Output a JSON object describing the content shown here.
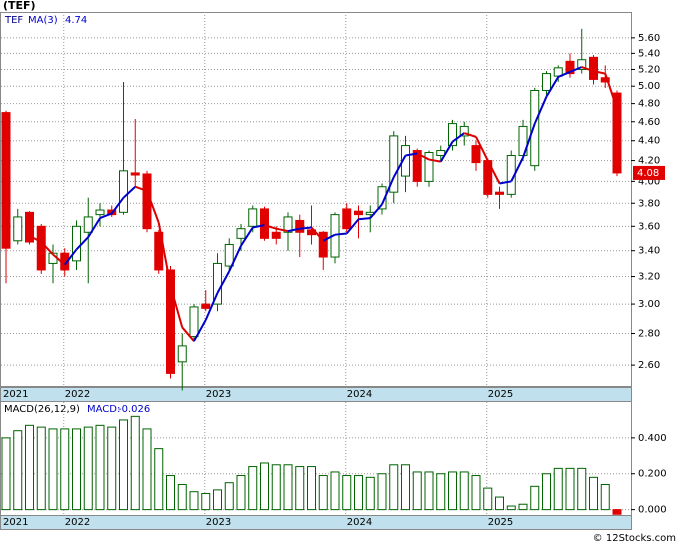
{
  "footer": "© 12Stocks.com",
  "chart_data": [
    {
      "type": "candlestick",
      "title": "(TEF)",
      "symbol": "TEF",
      "categories": [
        "2021",
        null,
        null,
        null,
        null,
        "2022",
        null,
        null,
        null,
        null,
        null,
        null,
        null,
        null,
        null,
        null,
        null,
        "2023",
        null,
        null,
        null,
        null,
        null,
        null,
        null,
        null,
        null,
        null,
        null,
        "2024",
        null,
        null,
        null,
        null,
        null,
        null,
        null,
        null,
        null,
        null,
        null,
        "2025",
        null,
        null,
        null,
        null,
        null,
        null,
        null,
        null,
        null,
        null,
        null
      ],
      "open": [
        4.7,
        3.48,
        3.72,
        3.6,
        3.3,
        3.38,
        3.32,
        3.55,
        3.7,
        3.74,
        3.72,
        4.08,
        4.07,
        3.55,
        3.25,
        2.62,
        2.78,
        3.0,
        3.0,
        3.28,
        3.5,
        3.6,
        3.75,
        3.55,
        3.55,
        3.65,
        3.57,
        3.55,
        3.35,
        3.75,
        3.73,
        3.7,
        3.75,
        3.9,
        4.05,
        4.3,
        4.0,
        4.25,
        4.35,
        4.45,
        4.35,
        4.2,
        3.9,
        3.88,
        4.25,
        4.15,
        4.95,
        5.12,
        5.3,
        5.2,
        5.35,
        5.1,
        4.92
      ],
      "high": [
        4.72,
        3.75,
        3.73,
        3.62,
        3.45,
        3.42,
        3.65,
        3.85,
        3.8,
        3.78,
        5.05,
        4.63,
        4.1,
        3.57,
        3.28,
        2.8,
        3.0,
        3.1,
        3.38,
        3.5,
        3.62,
        3.78,
        3.77,
        3.6,
        3.72,
        3.7,
        3.78,
        3.56,
        3.72,
        3.8,
        3.78,
        3.78,
        3.98,
        4.5,
        4.45,
        4.32,
        4.3,
        4.35,
        4.62,
        4.6,
        4.4,
        4.22,
        3.95,
        4.3,
        4.62,
        4.98,
        5.18,
        5.25,
        5.4,
        5.72,
        5.38,
        5.25,
        4.95
      ],
      "low": [
        3.15,
        3.45,
        3.45,
        3.22,
        3.15,
        3.2,
        3.25,
        3.15,
        3.6,
        3.68,
        3.7,
        3.95,
        3.55,
        3.22,
        2.52,
        2.45,
        2.75,
        2.95,
        2.95,
        3.25,
        3.4,
        3.55,
        3.48,
        3.45,
        3.4,
        3.35,
        3.45,
        3.25,
        3.3,
        3.55,
        3.5,
        3.55,
        3.7,
        3.8,
        3.9,
        3.95,
        3.95,
        4.2,
        4.3,
        4.35,
        4.1,
        3.85,
        3.75,
        3.85,
        4.2,
        4.1,
        4.9,
        5.05,
        5.1,
        5.15,
        5.02,
        4.98,
        4.05
      ],
      "close": [
        3.42,
        3.68,
        3.47,
        3.25,
        3.38,
        3.25,
        3.6,
        3.68,
        3.74,
        3.7,
        4.1,
        4.06,
        3.58,
        3.25,
        2.55,
        2.72,
        2.98,
        2.97,
        3.3,
        3.45,
        3.58,
        3.75,
        3.5,
        3.5,
        3.68,
        3.55,
        3.53,
        3.35,
        3.7,
        3.58,
        3.7,
        3.72,
        3.95,
        4.45,
        4.35,
        4.0,
        4.28,
        4.3,
        4.58,
        4.55,
        4.18,
        3.88,
        3.88,
        4.25,
        4.55,
        4.95,
        5.15,
        5.22,
        5.15,
        5.32,
        5.08,
        5.05,
        4.08
      ],
      "up_color": "#006400",
      "down_color": "#e00000",
      "overlay": {
        "name": "MA(3)",
        "rise_color": "#0000cc",
        "fall_color": "#dd0000",
        "values": [
          null,
          null,
          3.52,
          3.47,
          3.37,
          3.29,
          3.41,
          3.51,
          3.67,
          3.71,
          3.85,
          3.95,
          3.91,
          3.63,
          3.13,
          2.84,
          2.75,
          2.89,
          3.08,
          3.24,
          3.44,
          3.59,
          3.61,
          3.58,
          3.56,
          3.58,
          3.59,
          3.48,
          3.53,
          3.54,
          3.66,
          3.67,
          3.79,
          4.04,
          4.25,
          4.27,
          4.21,
          4.19,
          4.39,
          4.48,
          4.44,
          4.2,
          3.98,
          4.0,
          4.23,
          4.58,
          4.88,
          5.11,
          5.17,
          5.23,
          5.18,
          5.15,
          4.74
        ]
      },
      "log_scale": true,
      "grid": true,
      "ylim": [
        2.47,
        5.95
      ],
      "yticks": [
        {
          "value": 2.6,
          "label": "2.60"
        },
        {
          "value": 2.8,
          "label": "2.80"
        },
        {
          "value": 3.0,
          "label": "3.00"
        },
        {
          "value": 3.2,
          "label": "3.20"
        },
        {
          "value": 3.4,
          "label": "3.40"
        },
        {
          "value": 3.6,
          "label": "3.60"
        },
        {
          "value": 3.8,
          "label": "3.80"
        },
        {
          "value": 4.0,
          "label": "4.00"
        },
        {
          "value": 4.2,
          "label": "4.20"
        },
        {
          "value": 4.4,
          "label": "4.40"
        },
        {
          "value": 4.6,
          "label": "4.60"
        },
        {
          "value": 4.8,
          "label": "4.80"
        },
        {
          "value": 5.0,
          "label": "5.00"
        },
        {
          "value": 5.2,
          "label": "5.20"
        },
        {
          "value": 5.4,
          "label": "5.40"
        },
        {
          "value": 5.6,
          "label": "5.60"
        }
      ]
    },
    {
      "type": "bar",
      "name": "MACD(26,12,9)",
      "value_prefix": "MACD:",
      "categories": [
        "2021",
        null,
        null,
        null,
        null,
        "2022",
        null,
        null,
        null,
        null,
        null,
        null,
        null,
        null,
        null,
        null,
        null,
        "2023",
        null,
        null,
        null,
        null,
        null,
        null,
        null,
        null,
        null,
        null,
        null,
        "2024",
        null,
        null,
        null,
        null,
        null,
        null,
        null,
        null,
        null,
        null,
        null,
        "2025",
        null,
        null,
        null,
        null,
        null,
        null,
        null,
        null,
        null,
        null,
        null
      ],
      "values": [
        0.4,
        0.44,
        0.47,
        0.46,
        0.45,
        0.45,
        0.45,
        0.46,
        0.47,
        0.46,
        0.5,
        0.52,
        0.45,
        0.34,
        0.19,
        0.14,
        0.1,
        0.09,
        0.11,
        0.15,
        0.19,
        0.24,
        0.26,
        0.25,
        0.25,
        0.24,
        0.24,
        0.19,
        0.21,
        0.19,
        0.19,
        0.18,
        0.2,
        0.25,
        0.25,
        0.21,
        0.21,
        0.2,
        0.21,
        0.21,
        0.19,
        0.12,
        0.07,
        0.02,
        0.03,
        0.13,
        0.2,
        0.23,
        0.23,
        0.23,
        0.18,
        0.14,
        -0.026
      ],
      "color": "#006400",
      "negative_color": "#e00000",
      "grid": true,
      "ylim": [
        -0.03,
        0.6
      ],
      "yticks": [
        {
          "value": 0,
          "label": "0.000"
        },
        {
          "value": 0.2,
          "label": "0.200"
        },
        {
          "value": 0.4,
          "label": "0.400"
        }
      ]
    }
  ]
}
